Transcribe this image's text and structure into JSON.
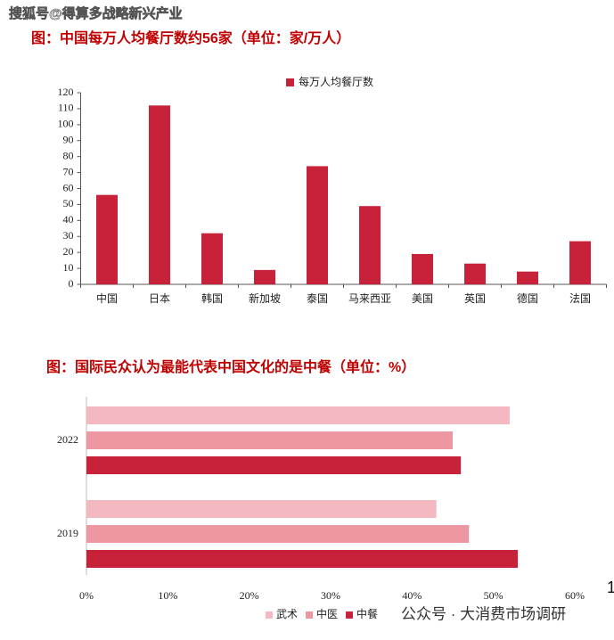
{
  "header": {
    "watermark": "搜狐号@得算多战略新兴产业"
  },
  "chart_data": [
    {
      "type": "bar",
      "title": "图：中国每万人均餐厅数约56家（单位：家/万人）",
      "categories": [
        "中国",
        "日本",
        "韩国",
        "新加坡",
        "泰国",
        "马来西亚",
        "美国",
        "英国",
        "德国",
        "法国"
      ],
      "series": [
        {
          "name": "每万人均餐厅数",
          "color": "#c8213a",
          "values": [
            56,
            112,
            32,
            9,
            74,
            49,
            19,
            13,
            8,
            27
          ]
        }
      ],
      "ylim": [
        0,
        120
      ],
      "yticks": [
        0,
        10,
        20,
        30,
        40,
        50,
        60,
        70,
        80,
        90,
        100,
        110,
        120
      ],
      "grid": false,
      "legend": "top"
    },
    {
      "type": "hbar",
      "title": "图：国际民众认为最能代表中国文化的是中餐（单位：%）",
      "categories": [
        "2022",
        "2019"
      ],
      "series": [
        {
          "name": "武术",
          "color": "#f4b8c0",
          "values": [
            52,
            43
          ]
        },
        {
          "name": "中医",
          "color": "#ec97a2",
          "values": [
            45,
            47
          ]
        },
        {
          "name": "中餐",
          "color": "#c8213a",
          "values": [
            46,
            53
          ]
        }
      ],
      "xlim": [
        0,
        60
      ],
      "xticks": [
        {
          "value": 0,
          "label": "0%"
        },
        {
          "value": 10,
          "label": "10%"
        },
        {
          "value": 20,
          "label": "20%"
        },
        {
          "value": 30,
          "label": "30%"
        },
        {
          "value": 40,
          "label": "40%"
        },
        {
          "value": 50,
          "label": "50%"
        },
        {
          "value": 60,
          "label": "60%"
        }
      ],
      "grid": false,
      "legend": "bottom"
    }
  ],
  "footer": {
    "watermark": "公众号 · 大消费市场调研",
    "page_number": "1"
  }
}
